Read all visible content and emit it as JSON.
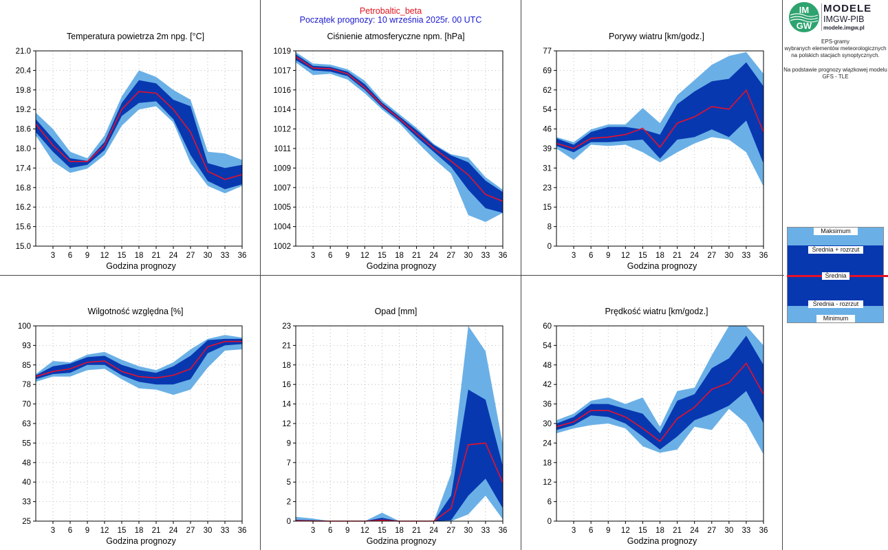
{
  "header": {
    "station": "Petrobaltic_beta",
    "forecast_start": "Początek prognozy: 10 września 2025r. 00 UTC"
  },
  "logo": {
    "mark_top": "IM",
    "mark_bottom": "GW",
    "line1": "MODELE",
    "line2": "IMGW-PIB",
    "line3": "modele.imgw.pl"
  },
  "info": {
    "lines": [
      "EPS-gramy",
      "wybranych elementów meteorologicznych",
      "na polskich stacjach  synoptycznych.",
      "",
      "Na podstawie prognozy wiązkowej modelu",
      "GFS - TLE"
    ]
  },
  "legend": {
    "max": "Maksimum",
    "mean_plus": "Średnia + rozrzut",
    "mean": "Średnia",
    "mean_minus": "Średnia - rozrzut",
    "min": "Minimum"
  },
  "colors": {
    "minmax_band": "#6ab0e6",
    "spread_band": "#0838b0",
    "mean_line": "#e8102a",
    "grid": "#a8a8a8",
    "frame": "#000000"
  },
  "chart_data": [
    {
      "type": "area",
      "title": "Temperatura powietrza 2m npg. [°C]",
      "xlabel": "Godzina prognozy",
      "ylabel": "",
      "x": [
        0,
        3,
        6,
        9,
        12,
        15,
        18,
        21,
        24,
        27,
        30,
        33,
        36
      ],
      "xticks": [
        3,
        6,
        9,
        12,
        15,
        18,
        21,
        24,
        27,
        30,
        33,
        36
      ],
      "yticks": [
        "15.0",
        "15.6",
        "16.2",
        "16.8",
        "17.4",
        "18.0",
        "18.6",
        "19.2",
        "19.8",
        "20.4",
        "21.0"
      ],
      "ylim": [
        15.0,
        21.0
      ],
      "series": [
        {
          "name": "Maksimum",
          "values": [
            19.1,
            18.6,
            17.9,
            17.7,
            18.4,
            19.6,
            20.4,
            20.2,
            19.8,
            19.5,
            17.9,
            17.85,
            17.65
          ]
        },
        {
          "name": "Średnia + rozrzut",
          "values": [
            18.9,
            18.3,
            17.7,
            17.62,
            18.2,
            19.4,
            20.1,
            20.0,
            19.5,
            19.3,
            17.55,
            17.4,
            17.5
          ]
        },
        {
          "name": "Średnia",
          "values": [
            18.75,
            18.1,
            17.6,
            17.6,
            18.1,
            19.2,
            19.75,
            19.7,
            19.2,
            18.5,
            17.3,
            17.05,
            17.2
          ]
        },
        {
          "name": "Średnia - rozrzut",
          "values": [
            18.5,
            17.9,
            17.4,
            17.5,
            17.95,
            19.0,
            19.4,
            19.45,
            18.9,
            17.8,
            17.0,
            16.75,
            16.9
          ]
        },
        {
          "name": "Minimum",
          "values": [
            18.4,
            17.6,
            17.25,
            17.38,
            17.8,
            18.7,
            19.2,
            19.3,
            18.8,
            17.55,
            16.85,
            16.62,
            16.85
          ]
        }
      ]
    },
    {
      "type": "area",
      "title": "Ciśnienie atmosferyczne npm. [hPa]",
      "xlabel": "Godzina prognozy",
      "ylabel": "",
      "x": [
        0,
        3,
        6,
        9,
        12,
        15,
        18,
        21,
        24,
        27,
        30,
        33,
        36
      ],
      "xticks": [
        3,
        6,
        9,
        12,
        15,
        18,
        21,
        24,
        27,
        30,
        33,
        36
      ],
      "yticks": [
        "1002",
        "1004",
        "1005",
        "1007",
        "1009",
        "1011",
        "1012",
        "1014",
        "1016",
        "1017",
        "1019"
      ],
      "ylim": [
        1002,
        1019
      ],
      "series": [
        {
          "name": "Maksimum",
          "values": [
            1018.9,
            1017.9,
            1017.8,
            1017.4,
            1016.4,
            1014.7,
            1013.5,
            1012.3,
            1010.9,
            1010.0,
            1009.7,
            1008.0,
            1006.9
          ]
        },
        {
          "name": "Średnia + rozrzut",
          "values": [
            1018.7,
            1017.7,
            1017.6,
            1017.2,
            1016.1,
            1014.5,
            1013.3,
            1012.1,
            1010.8,
            1009.9,
            1009.3,
            1007.7,
            1006.7
          ]
        },
        {
          "name": "Średnia",
          "values": [
            1018.5,
            1017.5,
            1017.45,
            1017.0,
            1015.8,
            1014.3,
            1013.1,
            1011.8,
            1010.5,
            1009.4,
            1008.2,
            1006.5,
            1005.9
          ]
        },
        {
          "name": "Średnia - rozrzut",
          "values": [
            1018.2,
            1017.3,
            1017.2,
            1016.8,
            1015.6,
            1014.1,
            1012.9,
            1011.5,
            1010.2,
            1008.9,
            1006.9,
            1005.3,
            1004.9
          ]
        },
        {
          "name": "Minimum",
          "values": [
            1018.0,
            1016.9,
            1017.0,
            1016.5,
            1015.3,
            1013.9,
            1012.7,
            1011.1,
            1009.6,
            1008.3,
            1004.7,
            1004.1,
            1004.9
          ]
        }
      ]
    },
    {
      "type": "area",
      "title": "Porywy wiatru [km/godz.]",
      "xlabel": "Godzina prognozy",
      "ylabel": "",
      "x": [
        0,
        3,
        6,
        9,
        12,
        15,
        18,
        21,
        24,
        27,
        30,
        33,
        36
      ],
      "xticks": [
        3,
        6,
        9,
        12,
        15,
        18,
        21,
        24,
        27,
        30,
        33,
        36
      ],
      "yticks": [
        "0",
        "8",
        "15",
        "23",
        "31",
        "39",
        "46",
        "54",
        "62",
        "69",
        "77"
      ],
      "ylim": [
        0,
        77
      ],
      "series": [
        {
          "name": "Maksimum",
          "values": [
            43,
            41,
            46,
            48,
            48,
            54.5,
            48.5,
            59.5,
            65.5,
            71.5,
            75,
            76.5,
            68
          ]
        },
        {
          "name": "Średnia + rozrzut",
          "values": [
            42.5,
            40,
            45,
            47,
            47,
            46,
            44,
            56,
            61,
            65,
            66,
            72.5,
            63
          ]
        },
        {
          "name": "Średnia",
          "values": [
            40.5,
            38.5,
            42.5,
            43,
            44,
            46.5,
            39,
            48.5,
            51,
            55,
            54,
            61.5,
            45
          ]
        },
        {
          "name": "Średnia - rozrzut",
          "values": [
            39.5,
            37,
            41,
            41,
            41.5,
            42,
            34.5,
            42,
            43,
            46,
            43,
            49.5,
            32.5
          ]
        },
        {
          "name": "Minimum",
          "values": [
            38.5,
            34,
            40,
            39.5,
            40,
            37,
            33,
            37,
            40.5,
            43,
            42,
            37,
            23.5
          ]
        }
      ]
    },
    {
      "type": "area",
      "title": "Wilgotność względna [%]",
      "xlabel": "Godzina prognozy",
      "ylabel": "",
      "x": [
        0,
        3,
        6,
        9,
        12,
        15,
        18,
        21,
        24,
        27,
        30,
        33,
        36
      ],
      "xticks": [
        3,
        6,
        9,
        12,
        15,
        18,
        21,
        24,
        27,
        30,
        33,
        36
      ],
      "yticks": [
        "25",
        "33",
        "40",
        "48",
        "55",
        "63",
        "70",
        "78",
        "85",
        "93",
        "100"
      ],
      "ylim": [
        25,
        100
      ],
      "series": [
        {
          "name": "Maksimum",
          "values": [
            81.5,
            86.5,
            86,
            89,
            90,
            87,
            84.5,
            83,
            86,
            91,
            95,
            96.5,
            95.5
          ]
        },
        {
          "name": "Średnia + rozrzut",
          "values": [
            81,
            84.5,
            85.5,
            88,
            88.5,
            85,
            83,
            82,
            84.5,
            88.5,
            94.5,
            95,
            95
          ]
        },
        {
          "name": "Średnia",
          "values": [
            80.5,
            82.5,
            83.5,
            86,
            86.5,
            82.5,
            80.5,
            80,
            81,
            83.5,
            92,
            94,
            94
          ]
        },
        {
          "name": "Średnia - rozrzut",
          "values": [
            79.5,
            81.5,
            82,
            85,
            85,
            81,
            78.5,
            77.5,
            77.5,
            79.5,
            89.5,
            92.5,
            93
          ]
        },
        {
          "name": "Minimum",
          "values": [
            78.5,
            80.5,
            80.5,
            83,
            83.5,
            79.5,
            76,
            75.5,
            73.5,
            75.5,
            84,
            90.5,
            91
          ]
        }
      ]
    },
    {
      "type": "area",
      "title": "Opad [mm]",
      "xlabel": "Godzina prognozy",
      "ylabel": "",
      "x": [
        0,
        3,
        6,
        9,
        12,
        15,
        18,
        21,
        24,
        27,
        30,
        33,
        36
      ],
      "xticks": [
        3,
        6,
        9,
        12,
        15,
        18,
        21,
        24,
        27,
        30,
        33,
        36
      ],
      "yticks": [
        "0",
        "2",
        "5",
        "7",
        "9",
        "12",
        "14",
        "16",
        "18",
        "21",
        "23"
      ],
      "ylim": [
        0,
        23
      ],
      "series": [
        {
          "name": "Maksimum",
          "values": [
            0.5,
            0.3,
            0,
            0,
            0,
            1,
            0,
            0,
            0,
            5.6,
            23,
            20,
            9
          ]
        },
        {
          "name": "Średnia + rozrzut",
          "values": [
            0.15,
            0.1,
            0,
            0,
            0,
            0.4,
            0,
            0,
            0,
            3,
            15.5,
            14.3,
            6.5
          ]
        },
        {
          "name": "Średnia",
          "values": [
            0.05,
            0.02,
            0,
            0,
            0,
            0.1,
            0,
            0,
            0,
            1.5,
            9,
            9.2,
            4.5
          ]
        },
        {
          "name": "Średnia - rozrzut",
          "values": [
            0,
            0,
            0,
            0,
            0,
            0,
            0,
            0,
            0,
            0.1,
            3,
            5,
            1.5
          ]
        },
        {
          "name": "Minimum",
          "values": [
            0,
            0,
            0,
            0,
            0,
            0,
            0,
            0,
            0,
            0,
            0.8,
            3,
            0.2
          ]
        }
      ]
    },
    {
      "type": "area",
      "title": "Prędkość wiatru [km/godz.]",
      "xlabel": "Godzina prognozy",
      "ylabel": "",
      "x": [
        0,
        3,
        6,
        9,
        12,
        15,
        18,
        21,
        24,
        27,
        30,
        33,
        36
      ],
      "xticks": [
        3,
        6,
        9,
        12,
        15,
        18,
        21,
        24,
        27,
        30,
        33,
        36
      ],
      "yticks": [
        "0",
        "6",
        "12",
        "18",
        "24",
        "30",
        "36",
        "42",
        "48",
        "54",
        "60"
      ],
      "ylim": [
        0,
        60
      ],
      "series": [
        {
          "name": "Maksimum",
          "values": [
            31,
            33,
            37,
            38,
            36,
            38,
            29,
            40,
            41,
            51,
            60,
            60,
            54
          ]
        },
        {
          "name": "Średnia + rozrzut",
          "values": [
            30,
            32,
            36,
            36,
            34.5,
            33,
            27,
            37,
            39,
            47,
            50,
            57,
            48
          ]
        },
        {
          "name": "Średnia",
          "values": [
            29,
            30.5,
            34,
            34,
            32,
            28.5,
            24.5,
            31.5,
            35,
            40.5,
            42.5,
            48.5,
            39
          ]
        },
        {
          "name": "Średnia - rozrzut",
          "values": [
            28,
            29.5,
            32.5,
            32,
            30,
            26,
            22,
            26,
            31,
            33,
            35.5,
            40,
            30
          ]
        },
        {
          "name": "Minimum",
          "values": [
            27,
            28.5,
            29.5,
            30,
            28.5,
            23,
            21,
            22,
            29,
            28,
            34.5,
            30,
            20.5
          ]
        }
      ]
    }
  ]
}
